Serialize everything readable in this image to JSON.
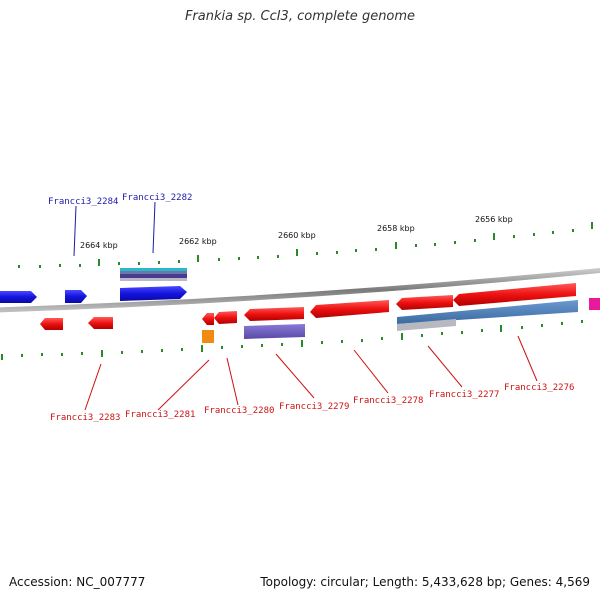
{
  "title": "Frankia sp. CcI3, complete genome",
  "footer": {
    "accession": "Accession: NC_007777",
    "summary": "Topology: circular; Length: 5,433,628 bp; Genes: 4,569"
  },
  "colors": {
    "forward_gene": "#1414e0",
    "reverse_gene": "#ee1111",
    "label_top": "#1a1aa8",
    "label_bottom": "#cc1111",
    "tick": "#2a8a2a",
    "backbone": "#8a8a8a"
  },
  "scale": {
    "ticks_kbp": [
      "2664 kbp",
      "2662 kbp",
      "2660 kbp",
      "2658 kbp",
      "2656 kbp"
    ]
  },
  "gene_labels": {
    "top": [
      "Francci3_2284",
      "Francci3_2282"
    ],
    "bottom": [
      "Francci3_2283",
      "Francci3_2281",
      "Francci3_2280",
      "Francci3_2279",
      "Francci3_2278",
      "Francci3_2277",
      "Francci3_2276"
    ]
  }
}
